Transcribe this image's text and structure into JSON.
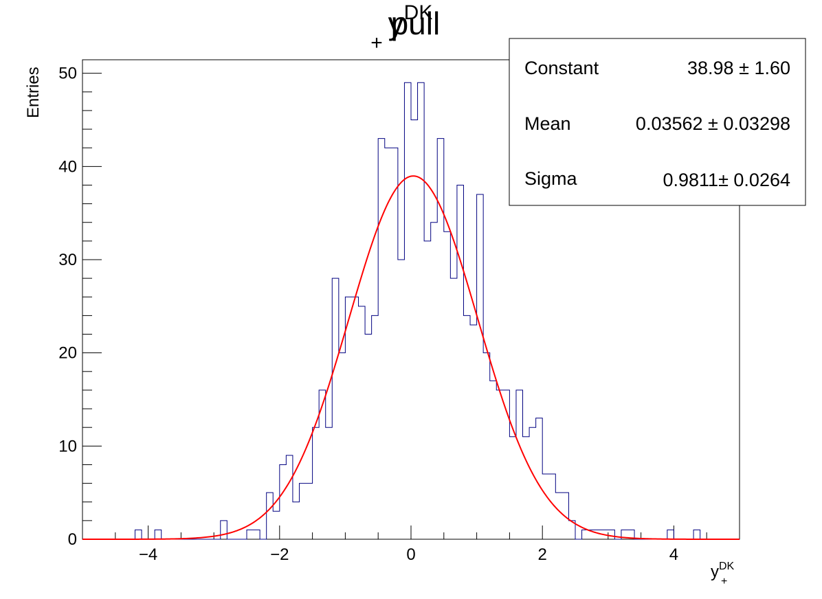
{
  "chart_data": {
    "type": "histogram",
    "title": {
      "base": "y",
      "sup": "DK",
      "sub": "+",
      "rest": " pull"
    },
    "xlabel": {
      "base": "y",
      "sup": "DK",
      "sub": "+"
    },
    "ylabel": "Entries",
    "xlim": [
      -5,
      5
    ],
    "ylim": [
      0,
      51.45
    ],
    "bin_width": 0.1,
    "x_ticks": [
      -4,
      -2,
      0,
      2,
      4
    ],
    "x_tick_labels": [
      "−4",
      "−2",
      "0",
      "2",
      "4"
    ],
    "y_ticks": [
      0,
      10,
      20,
      30,
      40,
      50
    ],
    "y_tick_labels": [
      "0",
      "10",
      "20",
      "30",
      "40",
      "50"
    ],
    "grid": false,
    "histogram_color": "#000080",
    "fit_color": "#ff0000",
    "bin_edges_start": -5,
    "counts": [
      0,
      0,
      0,
      0,
      0,
      0,
      0,
      0,
      1,
      0,
      0,
      1,
      0,
      0,
      0,
      0,
      0,
      0,
      0,
      0,
      0,
      2,
      0,
      0,
      0,
      1,
      1,
      0,
      5,
      3,
      8,
      9,
      4,
      6,
      6,
      12,
      16,
      12,
      28,
      20,
      26,
      26,
      25,
      22,
      24,
      43,
      42,
      42,
      30,
      49,
      45,
      49,
      32,
      34,
      43,
      33,
      28,
      38,
      24,
      23,
      37,
      20,
      17,
      16,
      16,
      11,
      16,
      11,
      12,
      13,
      7,
      7,
      5,
      5,
      2,
      0,
      1,
      1,
      1,
      1,
      1,
      0,
      1,
      1,
      0,
      0,
      0,
      0,
      0,
      1,
      0,
      0,
      0,
      1,
      0,
      0,
      0,
      0,
      0,
      0
    ],
    "fit": {
      "function": "gaus",
      "constant": 38.98,
      "mean": 0.03562,
      "sigma": 0.9811
    },
    "stats_box": [
      {
        "name": "Constant",
        "value": "38.98",
        "pm": "±",
        "err": "1.60"
      },
      {
        "name": "Mean",
        "value": "0.03562",
        "pm": "±",
        "err": "0.03298"
      },
      {
        "name": "Sigma",
        "value": "0.9811",
        "pm": "±",
        "err": "0.0264"
      }
    ]
  }
}
